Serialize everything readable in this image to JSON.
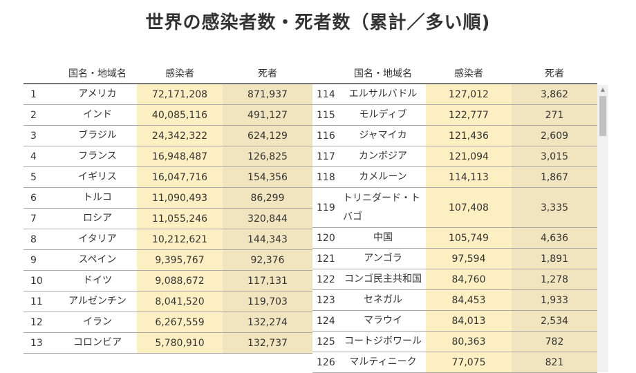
{
  "title": "世界の感染者数・死者数（累計／多い順)",
  "headers": {
    "rank": "",
    "name": "国名・地域名",
    "cases": "感染者",
    "deaths": "死者"
  },
  "left_rows": [
    {
      "rank": "1",
      "name": "アメリカ",
      "cases": "72,171,208",
      "deaths": "871,937"
    },
    {
      "rank": "2",
      "name": "インド",
      "cases": "40,085,116",
      "deaths": "491,127"
    },
    {
      "rank": "3",
      "name": "ブラジル",
      "cases": "24,342,322",
      "deaths": "624,129"
    },
    {
      "rank": "4",
      "name": "フランス",
      "cases": "16,948,487",
      "deaths": "126,825"
    },
    {
      "rank": "5",
      "name": "イギリス",
      "cases": "16,047,716",
      "deaths": "154,356"
    },
    {
      "rank": "6",
      "name": "トルコ",
      "cases": "11,090,493",
      "deaths": "86,299"
    },
    {
      "rank": "7",
      "name": "ロシア",
      "cases": "11,055,246",
      "deaths": "320,844"
    },
    {
      "rank": "8",
      "name": "イタリア",
      "cases": "10,212,621",
      "deaths": "144,343"
    },
    {
      "rank": "9",
      "name": "スペイン",
      "cases": "9,395,767",
      "deaths": "92,376"
    },
    {
      "rank": "10",
      "name": "ドイツ",
      "cases": "9,088,672",
      "deaths": "117,131"
    },
    {
      "rank": "11",
      "name": "アルゼンチン",
      "cases": "8,041,520",
      "deaths": "119,703"
    },
    {
      "rank": "12",
      "name": "イラン",
      "cases": "6,267,559",
      "deaths": "132,274"
    },
    {
      "rank": "13",
      "name": "コロンビア",
      "cases": "5,780,910",
      "deaths": "132,737"
    }
  ],
  "right_rows": [
    {
      "rank": "114",
      "name": "エルサルバドル",
      "cases": "127,012",
      "deaths": "3,862"
    },
    {
      "rank": "115",
      "name": "モルディブ",
      "cases": "122,777",
      "deaths": "271"
    },
    {
      "rank": "116",
      "name": "ジャマイカ",
      "cases": "121,436",
      "deaths": "2,609"
    },
    {
      "rank": "117",
      "name": "カンボジア",
      "cases": "121,094",
      "deaths": "3,015"
    },
    {
      "rank": "118",
      "name": "カメルーン",
      "cases": "114,113",
      "deaths": "1,867"
    },
    {
      "rank": "119",
      "name": "トリニダード・トバゴ",
      "cases": "107,408",
      "deaths": "3,335"
    },
    {
      "rank": "120",
      "name": "中国",
      "cases": "105,749",
      "deaths": "4,636"
    },
    {
      "rank": "121",
      "name": "アンゴラ",
      "cases": "97,594",
      "deaths": "1,891"
    },
    {
      "rank": "122",
      "name": "コンゴ民主共和国",
      "cases": "84,760",
      "deaths": "1,278"
    },
    {
      "rank": "123",
      "name": "セネガル",
      "cases": "84,453",
      "deaths": "1,933"
    },
    {
      "rank": "124",
      "name": "マラウイ",
      "cases": "84,013",
      "deaths": "2,534"
    },
    {
      "rank": "125",
      "name": "コートジボワール",
      "cases": "80,363",
      "deaths": "782"
    },
    {
      "rank": "126",
      "name": "マルティニーク",
      "cases": "77,075",
      "deaths": "821"
    }
  ],
  "scrollbar": {
    "up_icon": "triangle-up-icon"
  }
}
